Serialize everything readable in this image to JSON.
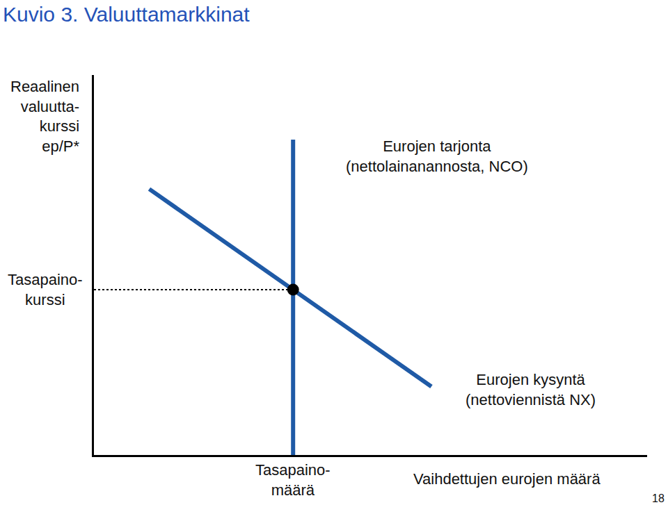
{
  "chart_data": {
    "type": "line",
    "title": "Kuvio 3. Valuuttamarkkinat",
    "y_label": "Reaalinen\nvaluutta-\nkurssi\nep/P*",
    "x_label": "Vaihdettujen eurojen määrä",
    "xlim": [
      0,
      10
    ],
    "ylim": [
      0,
      10
    ],
    "xticks": [],
    "yticks": [],
    "tick_labels": false,
    "grid": false,
    "color": "#1f5aa6",
    "series": [
      {
        "name": "Eurojen tarjonta\n(nettolainanannosta, NCO)",
        "x": [
          3.6,
          3.6
        ],
        "values": [
          0,
          8.3
        ]
      },
      {
        "name": "Eurojen kysyntä\n(nettoviennistä NX)",
        "x": [
          1.0,
          6.1
        ],
        "values": [
          7.0,
          1.8
        ]
      }
    ],
    "equilibrium": {
      "x": 3.6,
      "y": 4.35,
      "x_label": "Tasapaino-\nmäärä",
      "y_label": "Tasapaino-\nkurssi"
    },
    "footer": "18"
  }
}
